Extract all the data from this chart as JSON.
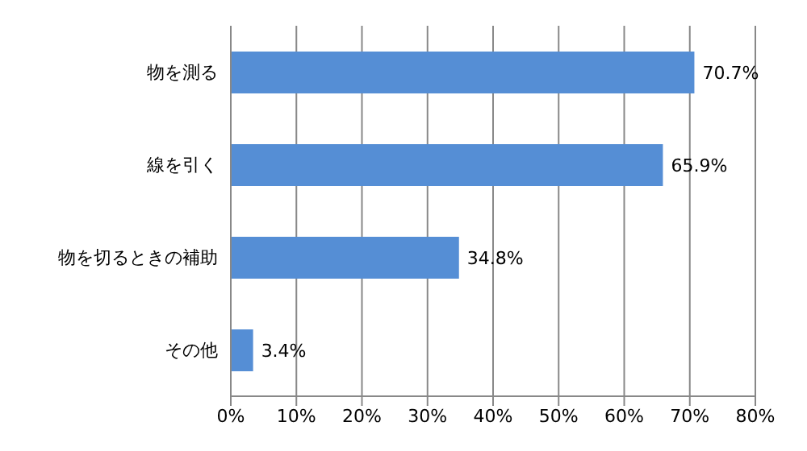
{
  "chart_data": {
    "type": "bar",
    "orientation": "horizontal",
    "categories": [
      "物を測る",
      "線を引く",
      "物を切るときの補助",
      "その他"
    ],
    "values": [
      70.7,
      65.9,
      34.8,
      3.4
    ],
    "value_labels": [
      "70.7%",
      "65.9%",
      "34.8%",
      "3.4%"
    ],
    "color": "#558ed5",
    "xlim": [
      0,
      80
    ],
    "xticks": [
      {
        "value": 0,
        "label": "0%"
      },
      {
        "value": 10,
        "label": "10%"
      },
      {
        "value": 20,
        "label": "20%"
      },
      {
        "value": 30,
        "label": "30%"
      },
      {
        "value": 40,
        "label": "40%"
      },
      {
        "value": 50,
        "label": "50%"
      },
      {
        "value": 60,
        "label": "60%"
      },
      {
        "value": 70,
        "label": "70%"
      },
      {
        "value": 80,
        "label": "80%"
      }
    ],
    "grid": "x"
  }
}
